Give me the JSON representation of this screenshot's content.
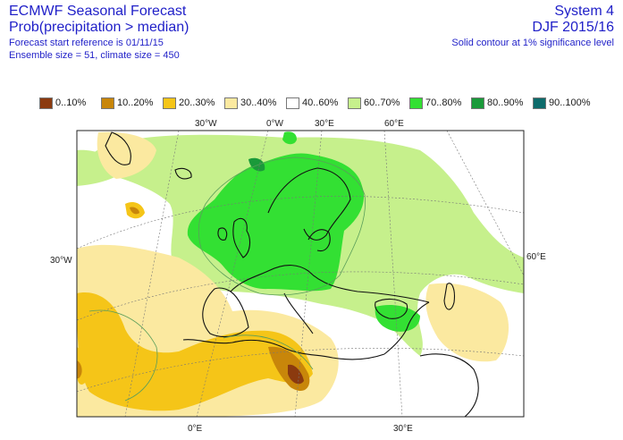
{
  "header": {
    "title_line1": "ECMWF Seasonal Forecast",
    "title_line2": "Prob(precipitation > median)",
    "forecast_start": "Forecast start reference is 01/11/15",
    "ensemble": "Ensemble size = 51, climate size = 450",
    "system": "System 4",
    "season": "DJF 2015/16",
    "significance": "Solid contour at 1% significance level"
  },
  "legend": [
    {
      "label": "0..10%",
      "color": "#8b3a0f"
    },
    {
      "label": "10..20%",
      "color": "#c8860a"
    },
    {
      "label": "20..30%",
      "color": "#f5c518"
    },
    {
      "label": "30..40%",
      "color": "#fbe9a0"
    },
    {
      "label": "40..60%",
      "color": "#ffffff"
    },
    {
      "label": "60..70%",
      "color": "#c6f08c"
    },
    {
      "label": "70..80%",
      "color": "#33e033"
    },
    {
      "label": "80..90%",
      "color": "#1a9a3a"
    },
    {
      "label": "90..100%",
      "color": "#0d6b6b"
    }
  ],
  "axis_labels": {
    "top": [
      "30°W",
      "0°W",
      "30°E",
      "60°E"
    ],
    "bottom": [
      "0°E",
      "30°E"
    ],
    "left": "30°W",
    "right": "60°E"
  }
}
